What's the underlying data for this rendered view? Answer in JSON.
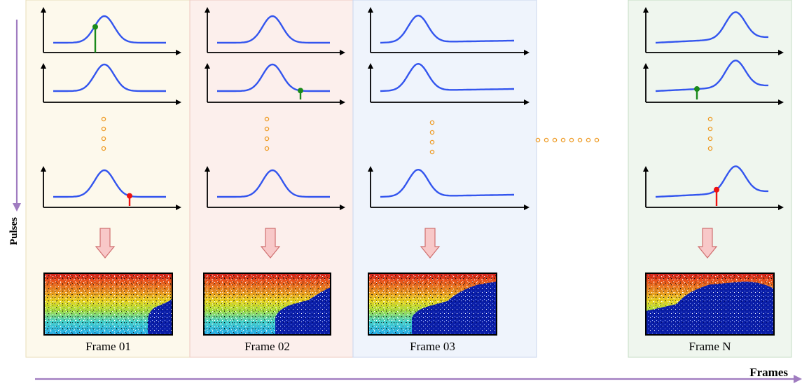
{
  "labels": {
    "pulses": "Pulses",
    "frames": "Frames"
  },
  "colors": {
    "pulses_arrow": "#a07cc0",
    "frames_arrow": "#a07cc0",
    "curve": "#3355ee",
    "axis": "#000000",
    "green_marker": "#1a8a1a",
    "red_marker": "#ee1111",
    "ellipsis_dots": "#ee9a22",
    "down_arrow_fill": "#f8c8c8",
    "down_arrow_stroke": "#d07070"
  },
  "frames": [
    {
      "label": "Frame 01",
      "panel_fill": "#fdf9ec",
      "panel_stroke": "#e8ddb8",
      "markers": {
        "top": "green",
        "bottom": "red"
      },
      "object": "car-front"
    },
    {
      "label": "Frame 02",
      "panel_fill": "#fcefec",
      "panel_stroke": "#eec8c0",
      "markers": {
        "second": "green"
      },
      "object": "car-front-advanced"
    },
    {
      "label": "Frame 03",
      "panel_fill": "#eff4fc",
      "panel_stroke": "#c8d6ee",
      "markers": {},
      "object": "car-half"
    },
    {
      "label": "Frame N",
      "panel_fill": "#eff6ee",
      "panel_stroke": "#c6dcc4",
      "markers": {
        "second": "green",
        "bottom": "red"
      },
      "object": "car-full"
    }
  ],
  "between_frames_ellipsis": "........"
}
